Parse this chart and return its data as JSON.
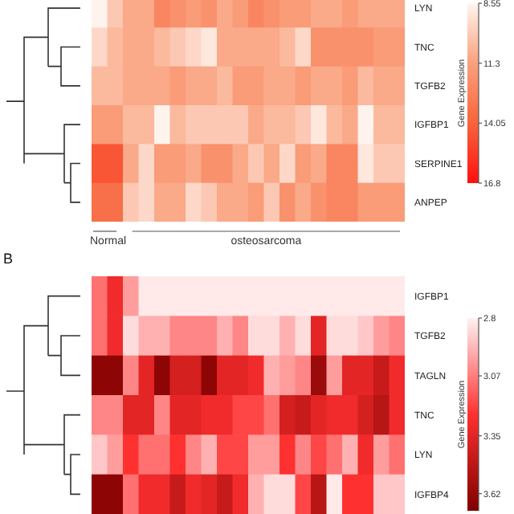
{
  "chart_data": [
    {
      "type": "heatmap",
      "clabel": "Gene Expression",
      "categories": [
        null,
        null,
        null,
        null,
        null,
        null,
        null,
        null,
        null,
        null,
        null,
        null,
        null,
        null,
        null,
        null,
        null,
        null,
        null,
        null
      ],
      "y_categories": [
        "LYN",
        "TNC",
        "TGFB2",
        "IGFBP1",
        "SERPINE1",
        "ANPEP"
      ],
      "colors": [
        "#fff5f0",
        "#f9a07c",
        "#f8643c",
        "#ff1010"
      ],
      "clim": [
        8.55,
        16.8
      ],
      "cticks": [
        8.55,
        11.3,
        14.05,
        16.8
      ],
      "cells": [
        [
          8.6,
          10,
          11,
          11,
          12.5,
          12,
          11.5,
          12,
          11,
          11.5,
          12.5,
          12,
          11.5,
          11.5,
          11,
          11,
          11.5,
          11,
          11,
          11
        ],
        [
          9.5,
          10.5,
          11,
          11,
          10.5,
          10,
          9.5,
          9,
          11,
          11,
          11,
          11,
          10.5,
          9.5,
          12,
          12,
          12,
          12,
          11.5,
          11.5
        ],
        [
          10.5,
          10.5,
          11,
          11,
          11,
          11.5,
          11,
          11,
          10.5,
          11.5,
          11.5,
          11,
          11,
          11.5,
          11,
          11,
          11.5,
          10.5,
          11,
          11
        ],
        [
          11.5,
          11.5,
          10.5,
          10.5,
          8.6,
          10.5,
          10,
          10,
          10,
          10,
          11,
          10.5,
          10.5,
          10,
          9,
          10.5,
          11,
          8.6,
          10.5,
          10.5
        ],
        [
          14.5,
          14.5,
          11,
          9.5,
          11.5,
          11.5,
          11,
          12,
          12,
          11,
          10,
          11,
          9.5,
          11.5,
          11,
          12.5,
          12.5,
          9,
          10,
          10
        ],
        [
          13.5,
          13.5,
          10,
          9.5,
          11,
          11,
          9.5,
          10,
          11,
          11,
          11.5,
          10,
          12,
          11,
          12,
          12.5,
          12.5,
          11.5,
          11.5,
          11.5
        ]
      ],
      "annotations": [
        "Normal",
        "osteosarcoma"
      ]
    },
    {
      "type": "heatmap",
      "title": "B",
      "clabel": "Gene Expression",
      "categories": [
        null,
        null,
        null,
        null,
        null,
        null,
        null,
        null,
        null,
        null,
        null,
        null,
        null,
        null,
        null,
        null,
        null,
        null,
        null,
        null
      ],
      "y_categories": [
        "IGFBP1",
        "TGFB2",
        "TAGLN",
        "TNC",
        "LYN",
        "IGFBP4"
      ],
      "colors": [
        "#fff2f2",
        "#ff3030",
        "#800000"
      ],
      "clim": [
        2.8,
        3.7
      ],
      "cticks": [
        2.8,
        3.07,
        3.35,
        3.62
      ],
      "cells": [
        [
          3.1,
          3.3,
          3.0,
          2.82,
          2.82,
          2.82,
          2.82,
          2.82,
          2.82,
          2.82,
          2.82,
          2.82,
          2.82,
          2.82,
          2.82,
          2.82,
          2.82,
          2.82,
          2.82,
          2.82
        ],
        [
          3.1,
          3.3,
          2.85,
          2.95,
          2.95,
          3.05,
          3.05,
          3.05,
          2.95,
          3.05,
          2.85,
          2.85,
          2.95,
          2.85,
          3.35,
          2.85,
          2.85,
          2.9,
          3.0,
          3.05
        ],
        [
          3.65,
          3.65,
          3.05,
          3.35,
          3.65,
          3.4,
          3.4,
          3.65,
          3.35,
          3.35,
          3.3,
          2.95,
          3.0,
          3.05,
          3.6,
          3.0,
          3.35,
          3.35,
          3.45,
          3.3
        ],
        [
          3.05,
          3.05,
          3.35,
          3.35,
          3.05,
          3.35,
          3.35,
          3.3,
          3.3,
          3.2,
          3.2,
          3.1,
          3.4,
          3.45,
          3.35,
          3.3,
          3.3,
          3.4,
          3.5,
          3.3
        ],
        [
          2.9,
          3.0,
          3.25,
          3.1,
          3.1,
          3.25,
          3.05,
          2.95,
          3.2,
          3.2,
          3.0,
          3.0,
          3.25,
          3.05,
          3.2,
          3.1,
          2.95,
          3.3,
          3.0,
          3.1
        ],
        [
          3.65,
          3.65,
          3.1,
          3.3,
          3.3,
          3.45,
          3.3,
          3.35,
          3.45,
          3.3,
          2.95,
          2.85,
          2.85,
          3.2,
          3.5,
          2.82,
          3.25,
          3.25,
          2.9,
          2.9
        ]
      ]
    }
  ]
}
